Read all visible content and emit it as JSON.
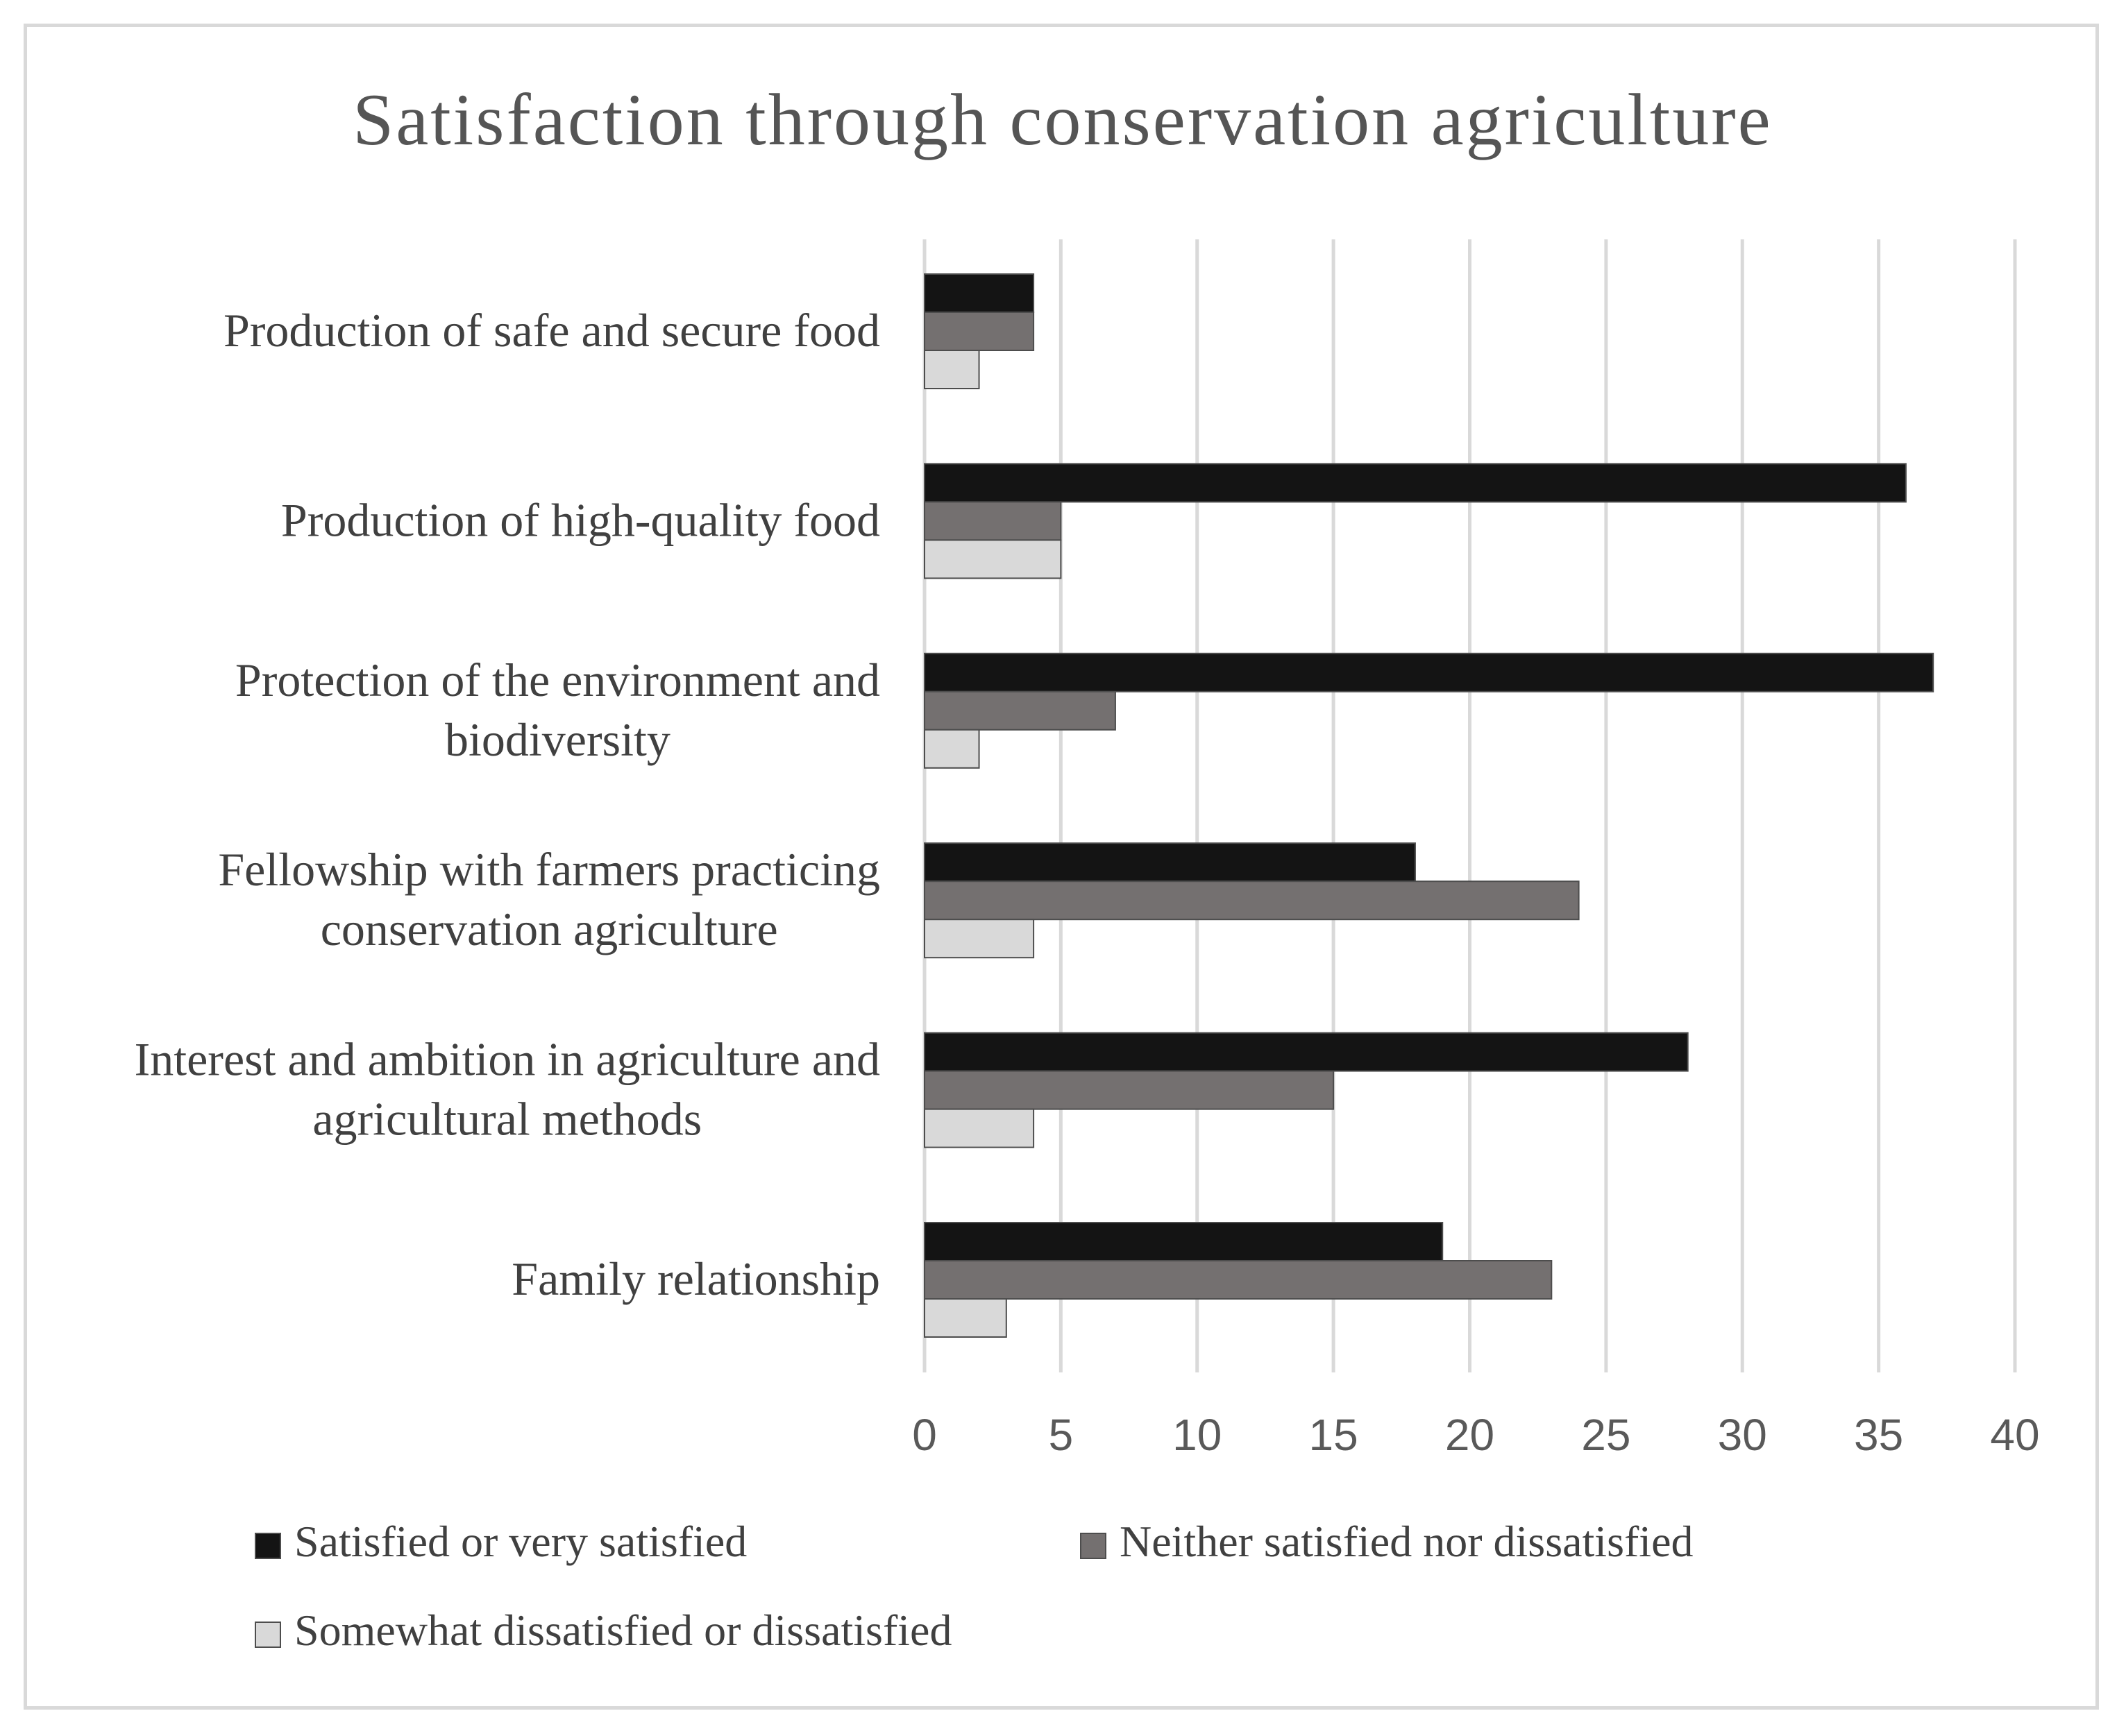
{
  "chart_data": {
    "type": "bar",
    "orientation": "horizontal",
    "title": "Satisfaction through conservation agriculture",
    "xlabel": "",
    "ylabel": "",
    "xlim": [
      0,
      40
    ],
    "x_ticks": [
      "0",
      "5",
      "10",
      "15",
      "20",
      "25",
      "30",
      "35",
      "40"
    ],
    "grid": true,
    "legend_position": "bottom",
    "categories": [
      [
        "Production of safe and secure food"
      ],
      [
        "Production of high-quality food"
      ],
      [
        "Protection of the environment and",
        "biodiversity"
      ],
      [
        "Fellowship with farmers practicing",
        "conservation agriculture"
      ],
      [
        "Interest and ambition in agriculture and",
        "agricultural methods"
      ],
      [
        "Family relationship"
      ]
    ],
    "series": [
      {
        "name": "Satisfied or very satisfied",
        "color": "#141414",
        "values": [
          4,
          36,
          37,
          18,
          28,
          19
        ]
      },
      {
        "name": "Neither satisfied nor dissatisfied",
        "color": "#747070",
        "values": [
          4,
          5,
          7,
          24,
          15,
          23
        ]
      },
      {
        "name": "Somewhat dissatisfied or dissatisfied",
        "color": "#d9d9d9",
        "values": [
          2,
          5,
          2,
          4,
          4,
          3
        ]
      }
    ]
  }
}
